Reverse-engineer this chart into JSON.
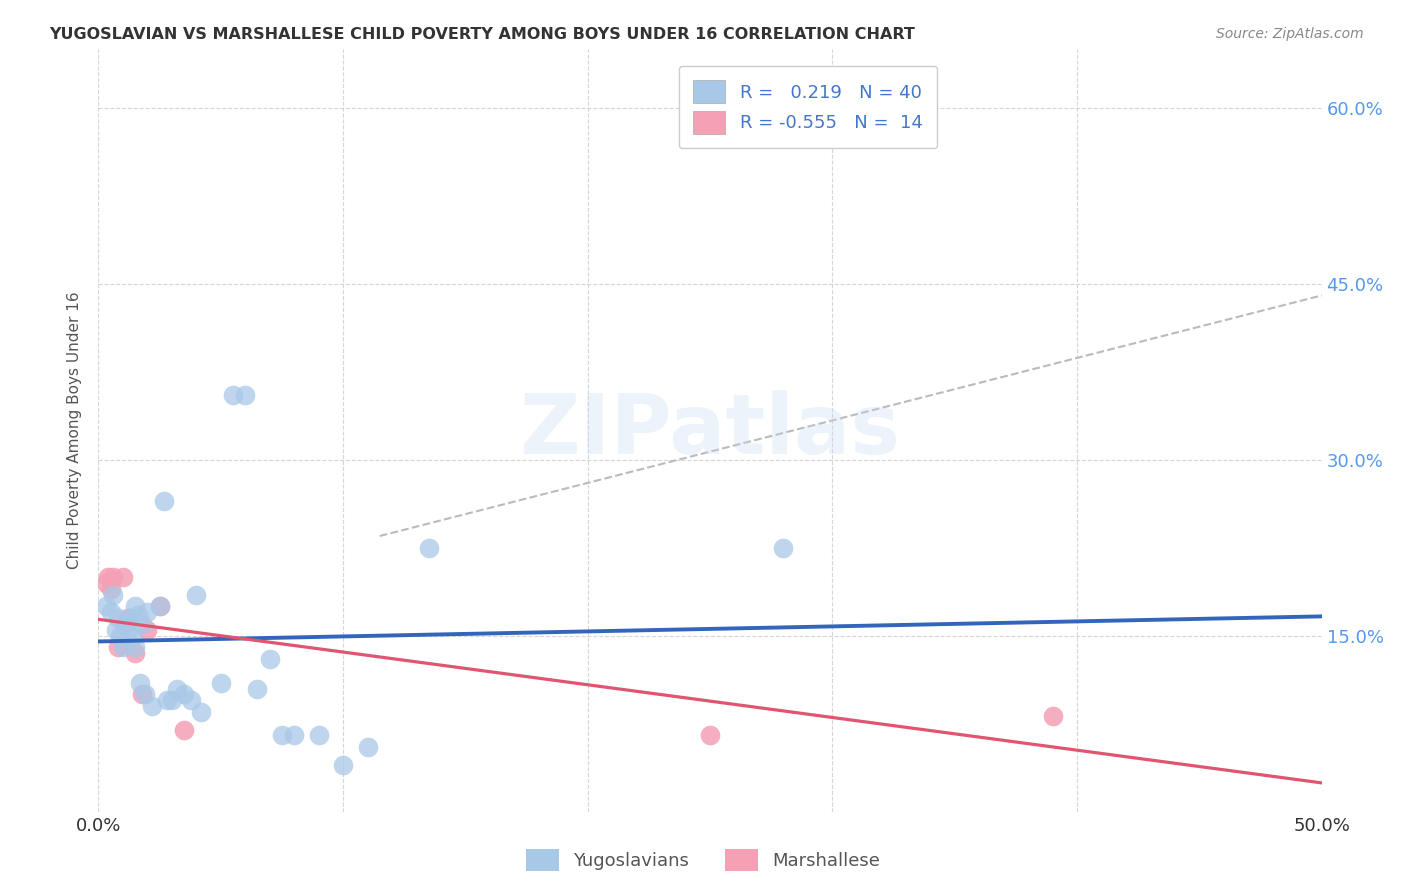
{
  "title": "YUGOSLAVIAN VS MARSHALLESE CHILD POVERTY AMONG BOYS UNDER 16 CORRELATION CHART",
  "source": "Source: ZipAtlas.com",
  "ylabel": "Child Poverty Among Boys Under 16",
  "xlim": [
    0.0,
    0.5
  ],
  "ylim": [
    0.0,
    0.65
  ],
  "yticks": [
    0.0,
    0.15,
    0.3,
    0.45,
    0.6
  ],
  "ytick_labels_right": [
    "",
    "15.0%",
    "30.0%",
    "45.0%",
    "60.0%"
  ],
  "xticks": [
    0.0,
    0.1,
    0.2,
    0.3,
    0.4,
    0.5
  ],
  "xtick_labels": [
    "0.0%",
    "",
    "",
    "",
    "",
    "50.0%"
  ],
  "yug_R": 0.219,
  "yug_N": 40,
  "mar_R": -0.555,
  "mar_N": 14,
  "yug_color": "#A8C8E8",
  "mar_color": "#F4A0B5",
  "yug_line_color": "#3366BB",
  "mar_line_color": "#E05570",
  "watermark": "ZIPatlas",
  "yug_points_x": [
    0.003,
    0.005,
    0.006,
    0.007,
    0.008,
    0.009,
    0.01,
    0.011,
    0.012,
    0.013,
    0.014,
    0.015,
    0.015,
    0.016,
    0.017,
    0.018,
    0.019,
    0.02,
    0.022,
    0.025,
    0.027,
    0.028,
    0.03,
    0.032,
    0.035,
    0.038,
    0.04,
    0.042,
    0.05,
    0.055,
    0.06,
    0.065,
    0.07,
    0.075,
    0.08,
    0.09,
    0.1,
    0.11,
    0.135,
    0.28
  ],
  "yug_points_y": [
    0.175,
    0.17,
    0.185,
    0.155,
    0.165,
    0.15,
    0.14,
    0.16,
    0.155,
    0.165,
    0.15,
    0.14,
    0.175,
    0.168,
    0.11,
    0.16,
    0.1,
    0.17,
    0.09,
    0.175,
    0.265,
    0.095,
    0.095,
    0.105,
    0.1,
    0.095,
    0.185,
    0.085,
    0.11,
    0.355,
    0.355,
    0.105,
    0.13,
    0.065,
    0.065,
    0.065,
    0.04,
    0.055,
    0.225,
    0.225
  ],
  "mar_points_x": [
    0.003,
    0.004,
    0.005,
    0.006,
    0.008,
    0.01,
    0.012,
    0.015,
    0.018,
    0.02,
    0.025,
    0.035,
    0.25,
    0.39
  ],
  "mar_points_y": [
    0.195,
    0.2,
    0.19,
    0.2,
    0.14,
    0.2,
    0.165,
    0.135,
    0.1,
    0.155,
    0.175,
    0.07,
    0.065,
    0.082
  ],
  "dash_line_x": [
    0.115,
    0.5
  ],
  "dash_line_y": [
    0.235,
    0.44
  ],
  "background_color": "#FFFFFF",
  "grid_color": "#CCCCCC"
}
